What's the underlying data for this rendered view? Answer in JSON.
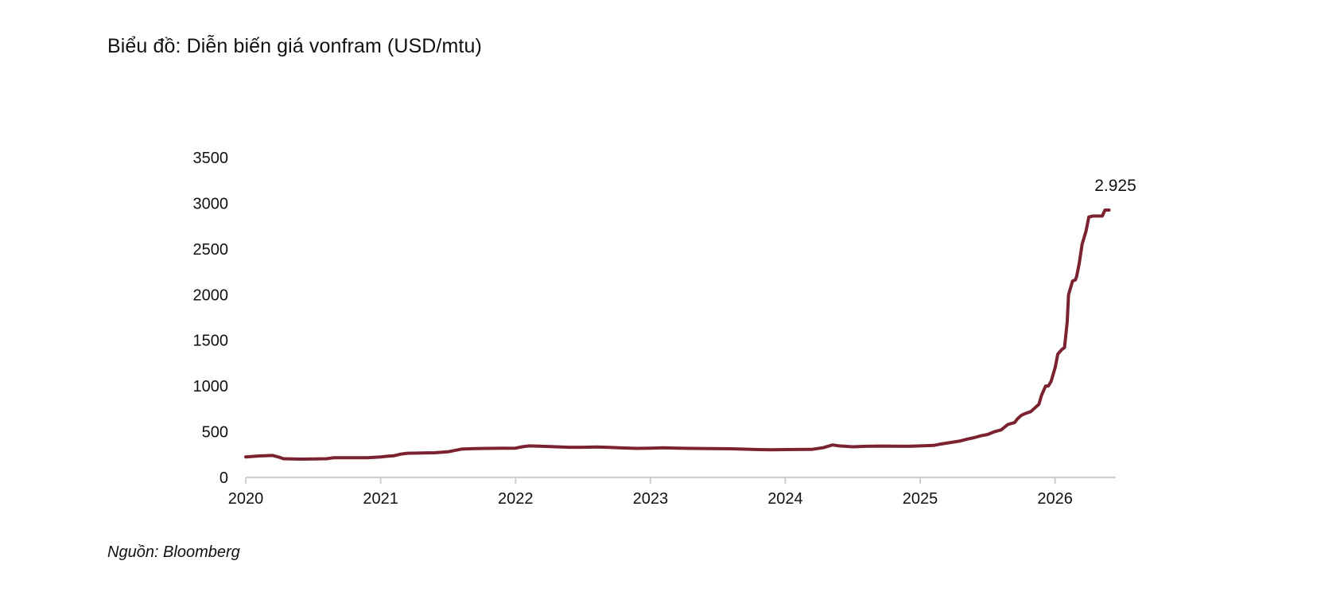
{
  "title": "Biểu đồ: Diễn biến giá vonfram (USD/mtu)",
  "source": "Nguồn: Bloomberg",
  "colors": {
    "line": "#7a2230",
    "axis": "#cfcfcf",
    "text": "#111111"
  },
  "chart_data": {
    "type": "line",
    "title": "Biểu đồ: Diễn biến giá vonfram (USD/mtu)",
    "xlabel": "",
    "ylabel": "",
    "ylim": [
      0,
      3500
    ],
    "xlim": [
      2020.0,
      2026.45
    ],
    "y_ticks": [
      "0",
      "500",
      "1000",
      "1500",
      "2000",
      "2500",
      "3000",
      "3500"
    ],
    "x_ticks": [
      "2020",
      "2021",
      "2022",
      "2023",
      "2024",
      "2025",
      "2026"
    ],
    "grid": false,
    "legend": "none",
    "annotation": {
      "text": "2.925",
      "x": 2026.4,
      "y": 2925
    },
    "series": [
      {
        "x": [
          2020.0,
          2020.1,
          2020.2,
          2020.25,
          2020.28,
          2020.4,
          2020.6,
          2020.65,
          2020.9,
          2021.0,
          2021.05,
          2021.1,
          2021.15,
          2021.2,
          2021.4,
          2021.5,
          2021.55,
          2021.6,
          2021.7,
          2021.8,
          2022.0,
          2022.05,
          2022.1,
          2022.2,
          2022.3,
          2022.4,
          2022.5,
          2022.6,
          2022.7,
          2022.8,
          2022.9,
          2023.0,
          2023.1,
          2023.2,
          2023.3,
          2023.45,
          2023.6,
          2023.8,
          2023.9,
          2024.0,
          2024.2,
          2024.28,
          2024.35,
          2024.4,
          2024.5,
          2024.6,
          2024.7,
          2024.9,
          2025.0,
          2025.1,
          2025.15,
          2025.3,
          2025.35,
          2025.4,
          2025.45,
          2025.5,
          2025.55,
          2025.6,
          2025.65,
          2025.7,
          2025.72,
          2025.75,
          2025.78,
          2025.82,
          2025.85,
          2025.88,
          2025.9,
          2025.93,
          2025.95,
          2025.97,
          2026.0,
          2026.02,
          2026.05,
          2026.07,
          2026.09,
          2026.1,
          2026.13,
          2026.15,
          2026.16,
          2026.18,
          2026.2,
          2026.23,
          2026.25,
          2026.28,
          2026.3,
          2026.35,
          2026.37,
          2026.4
        ],
        "values": [
          225,
          235,
          240,
          220,
          205,
          200,
          205,
          215,
          215,
          225,
          232,
          238,
          255,
          265,
          270,
          280,
          295,
          310,
          315,
          318,
          320,
          335,
          345,
          340,
          335,
          330,
          330,
          333,
          328,
          322,
          318,
          320,
          325,
          320,
          318,
          315,
          313,
          305,
          302,
          305,
          307,
          325,
          355,
          345,
          335,
          340,
          343,
          340,
          345,
          350,
          365,
          400,
          420,
          435,
          455,
          470,
          500,
          520,
          580,
          600,
          640,
          680,
          700,
          720,
          760,
          800,
          900,
          1000,
          1000,
          1050,
          1200,
          1350,
          1400,
          1420,
          1700,
          2000,
          2150,
          2160,
          2200,
          2350,
          2550,
          2700,
          2850,
          2860,
          2860,
          2860,
          2925,
          2925
        ]
      }
    ]
  }
}
